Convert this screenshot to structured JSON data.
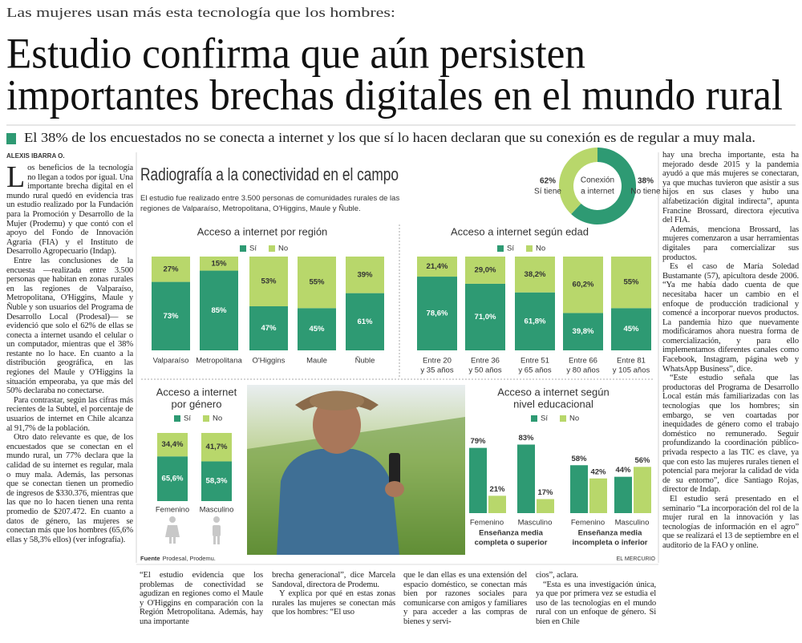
{
  "header": {
    "kicker": "Las mujeres usan más esta tecnología que los hombres:",
    "headline": [
      "Estudio confirma que aún persisten",
      "importantes brechas digitales en el mundo rural"
    ],
    "deck": "El 38% de los encuestados no se conecta a internet y los que sí lo hacen declaran que su conexión es de regular a muy mala.",
    "byline": "ALEXIS IBARRA O."
  },
  "body": {
    "left": [
      "Los beneficios de la tecnología no llegan a todos por igual. Una importante brecha digital en el mundo rural quedó en evidencia tras un estudio realizado por la Fundación para la Promoción y Desarrollo de la Mujer (Prodemu) y que contó con el apoyo del Fondo de Innovación Agraria (FIA) y el Instituto de Desarrollo Agropecuario (Indap).",
      "Entre las conclusiones de la encuesta —realizada entre 3.500 personas que habitan en zonas rurales en las regiones de Valparaíso, Metropolitana, O'Higgins, Maule y Ñuble y son usuarios del Programa de Desarrollo Local (Prodesal)— se evidenció que solo el 62% de ellas se conecta a internet usando el celular o un computador, mientras que el 38% restante no lo hace. En cuanto a la distribución geográfica, en las regiones del Maule y O'Higgins la situación empeoraba, ya que más del 50% declaraba no conectarse.",
      "Para contrastar, según las cifras más recientes de la Subtel, el porcentaje de usuarios de internet en Chile alcanza al 91,7% de la población.",
      "Otro dato relevante es que, de los encuestados que se conectan en el mundo rural, un 77% declara que la calidad de su internet es regular, mala o muy mala. Además, las personas que se conectan tienen un promedio de ingresos de $330.376, mientras que las que no lo hacen tienen una renta promedio de $207.472. En cuanto a datos de género, las mujeres se conectan más que los hombres (65,6% ellas y 58,3% ellos) (ver infografía)."
    ],
    "bottom": [
      [
        "“El estudio evidencia que los problemas de conectividad se agudizan en regiones como el Maule y O'Higgins en comparación con la Región Metropolitana. Además, hay una importante"
      ],
      [
        "brecha generacional”, dice Marcela Sandoval, directora de Prodemu.",
        "Y explica por qué en estas zonas rurales las mujeres se conectan más que los hombres: “El uso"
      ],
      [
        "que le dan ellas es una extensión del espacio doméstico, se conectan más bien por razones sociales para comunicarse con amigos y familiares y para acceder a las compras de bienes y servi-"
      ],
      [
        "cios”, aclara.",
        "“Esta es una investigación única, ya que por primera vez se estudia el uso de las tecnologías en el mundo rural con un enfoque de género. Si bien en Chile"
      ]
    ],
    "right": [
      "hay una brecha importante, esta ha mejorado desde 2015 y la pandemia ayudó a que más mujeres se conectaran, ya que muchas tuvieron que asistir a sus hijos en sus clases y hubo una alfabetización digital indirecta”, apunta Francine Brossard, directora ejecutiva del FIA.",
      "Además, menciona Brossard, las mujeres comenzaron a usar herramientas digitales para comercializar sus productos.",
      "Es el caso de María Soledad Bustamante (57), apicultora desde 2006. “Ya me había dado cuenta de que necesitaba hacer un cambio en el enfoque de producción tradicional y comencé a incorporar nuevos productos. La pandemia hizo que nuevamente modificáramos ahora nuestra forma de comercialización, y para ello implementamos diferentes canales como Facebook, Instagram, página web y WhatsApp Business”, dice.",
      "“Este estudio señala que las productoras del Programa de Desarrollo Local están más familiarizadas con las tecnologías que los hombres; sin embargo, se ven coartadas por inequidades de género como el trabajo doméstico no remunerado. Seguir profundizando la coordinación público-privada respecto a las TIC es clave, ya que con esto las mujeres rurales tienen el potencial para mejorar la calidad de vida de su entorno”, dice Santiago Rojas, director de Indap.",
      "El estudio será presentado en el seminario “La incorporación del rol de la mujer rural en la innovación y las tecnologías de información en el agro” que se realizará el 13 de septiembre en el auditorio de la FAO y online."
    ]
  },
  "infographic": {
    "title": "Radiografía a la conectividad en el campo",
    "subtitle": "El estudio fue realizado entre 3.500 personas de comunidades rurales de las regiones de Valparaíso, Metropolitana, O'Higgins, Maule y Ñuble.",
    "donut": {
      "type": "pie",
      "label": [
        "Conexión",
        "a internet"
      ],
      "names": [
        "Sí tiene",
        "No tiene"
      ],
      "values": [
        62,
        38
      ],
      "value_labels": [
        "62%",
        "38%"
      ],
      "colors": [
        "#2e9a73",
        "#b8d76b"
      ]
    },
    "charts": [
      {
        "type": "bar",
        "stacked": true,
        "title": [
          "Acceso a internet por región"
        ],
        "categories": [
          [
            "Valparaíso"
          ],
          [
            "Metropolitana"
          ],
          [
            "O'Higgins"
          ],
          [
            "Maule"
          ],
          [
            "Ñuble"
          ]
        ],
        "series": [
          {
            "name": "Sí",
            "color": "#2e9a73",
            "values": [
              73,
              85,
              47,
              45,
              61
            ],
            "value_labels": [
              "73%",
              "85%",
              "47%",
              "45%",
              "61%"
            ]
          },
          {
            "name": "No",
            "color": "#b8d76b",
            "values": [
              27,
              15,
              53,
              55,
              39
            ],
            "value_labels": [
              "27%",
              "15%",
              "53%",
              "55%",
              "39%"
            ]
          }
        ],
        "ylim": [
          0,
          100
        ]
      },
      {
        "type": "bar",
        "stacked": true,
        "title": [
          "Acceso a internet según edad"
        ],
        "categories": [
          [
            "Entre 20",
            "y 35 años"
          ],
          [
            "Entre 36",
            "y 50 años"
          ],
          [
            "Entre 51",
            "y 65 años"
          ],
          [
            "Entre 66",
            "y 80 años"
          ],
          [
            "Entre 81",
            "y 105 años"
          ]
        ],
        "series": [
          {
            "name": "Sí",
            "color": "#2e9a73",
            "values": [
              78.6,
              71,
              61.8,
              39.8,
              45
            ],
            "value_labels": [
              "78,6%",
              "71,0%",
              "61,8%",
              "39,8%",
              "45%"
            ]
          },
          {
            "name": "No",
            "color": "#b8d76b",
            "values": [
              21.4,
              29,
              38.2,
              60.2,
              55
            ],
            "value_labels": [
              "21,4%",
              "29,0%",
              "38,2%",
              "60,2%",
              "55%"
            ]
          }
        ],
        "ylim": [
          0,
          100
        ]
      },
      {
        "type": "bar",
        "stacked": true,
        "title": [
          "Acceso a internet",
          "por género"
        ],
        "categories": [
          [
            "Femenino"
          ],
          [
            "Masculino"
          ]
        ],
        "series": [
          {
            "name": "Sí",
            "color": "#2e9a73",
            "values": [
              65.6,
              58.3
            ],
            "value_labels": [
              "65,6%",
              "58,3%"
            ]
          },
          {
            "name": "No",
            "color": "#b8d76b",
            "values": [
              34.4,
              41.7
            ],
            "value_labels": [
              "34,4%",
              "41,7%"
            ]
          }
        ],
        "ylim": [
          0,
          100
        ]
      },
      {
        "type": "bar",
        "stacked": false,
        "title": [
          "Acceso a internet según",
          "nivel educacional"
        ],
        "categories": [
          [
            "Femenino"
          ],
          [
            "Masculino"
          ],
          [
            "Femenino"
          ],
          [
            "Masculino"
          ]
        ],
        "groups": [
          [
            "Enseñanza media",
            "completa o superior"
          ],
          [
            "Enseñanza media",
            "incompleta o inferior"
          ]
        ],
        "series": [
          {
            "name": "Sí",
            "color": "#2e9a73",
            "values": [
              79,
              83,
              58,
              44
            ],
            "value_labels": [
              "79%",
              "83%",
              "58%",
              "44%"
            ]
          },
          {
            "name": "No",
            "color": "#b8d76b",
            "values": [
              21,
              17,
              42,
              56
            ],
            "value_labels": [
              "21%",
              "17%",
              "42%",
              "56%"
            ]
          }
        ],
        "ylim": [
          0,
          100
        ]
      }
    ],
    "source": {
      "label": "Fuente",
      "text": "Prodesal, Prodemu."
    },
    "credit": "EL MERCURIO"
  }
}
